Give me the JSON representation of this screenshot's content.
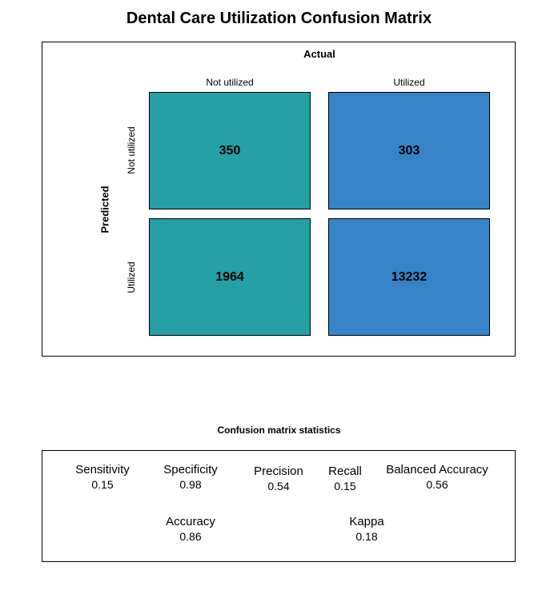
{
  "chart_data": {
    "type": "heatmap",
    "title": "Dental Care Utilization Confusion Matrix",
    "column_axis_label": "Actual",
    "row_axis_label": "Predicted",
    "columns": [
      "Not utilized",
      "Utilized"
    ],
    "rows": [
      "Not utilized",
      "Utilized"
    ],
    "values": [
      [
        350,
        303
      ],
      [
        1964,
        13232
      ]
    ],
    "column_colors": [
      "#239FA5",
      "#3783C8"
    ],
    "stats_title": "Confusion matrix statistics",
    "stats": [
      {
        "name": "Sensitivity",
        "value": "0.15"
      },
      {
        "name": "Specificity",
        "value": "0.98"
      },
      {
        "name": "Precision",
        "value": "0.54"
      },
      {
        "name": "Recall",
        "value": "0.15"
      },
      {
        "name": "Balanced Accuracy",
        "value": "0.56"
      },
      {
        "name": "Accuracy",
        "value": "0.86"
      },
      {
        "name": "Kappa",
        "value": "0.18"
      }
    ]
  }
}
